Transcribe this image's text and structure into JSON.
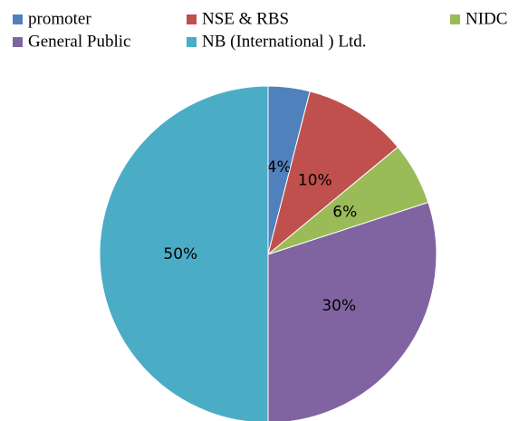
{
  "chart_data": {
    "type": "pie",
    "categories": [
      "promoter",
      "NSE & RBS",
      "NIDC",
      "General Public",
      "NB (International ) Ltd."
    ],
    "values": [
      4,
      10,
      6,
      30,
      50
    ],
    "value_labels": [
      "4%",
      "10%",
      "6%",
      "30%",
      "50%"
    ],
    "colors": [
      "#4f81bd",
      "#c0504d",
      "#9bbb59",
      "#8064a2",
      "#4bacc6"
    ]
  }
}
